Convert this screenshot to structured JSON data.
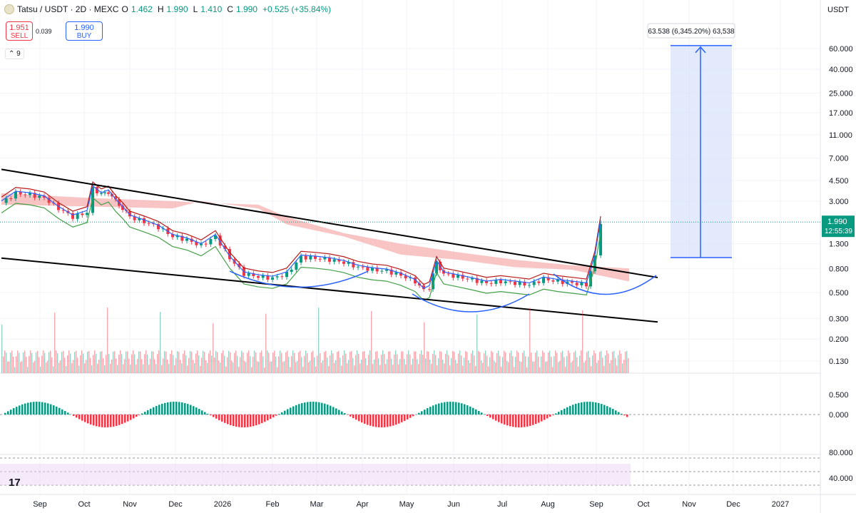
{
  "header": {
    "symbol": "Tatsu / USDT · 2D · MEXC",
    "o_label": "O",
    "o": "1.462",
    "h_label": "H",
    "h": "1.990",
    "l_label": "L",
    "l": "1.410",
    "c_label": "C",
    "c": "1.990",
    "change": "+0.525 (+35.84%)"
  },
  "trade": {
    "sell_price": "1.951",
    "sell_label": "SELL",
    "spread": "0.039",
    "buy_price": "1.990",
    "buy_label": "BUY"
  },
  "indicators_toggle": "⌃ 9",
  "currency": "USDT",
  "last_price_label": "1.990",
  "countdown": "12:55:39",
  "measure_label": "63.538 (6,345.20%) 63,538",
  "colors": {
    "up": "#089981",
    "down": "#f23645",
    "trendline": "#000000",
    "projection_fill": "#dbe5fb",
    "projection_line": "#2962ff",
    "cloud": "#f6b5b5",
    "kijun": "#b71c1c",
    "tenkan": "#2962ff",
    "chikou": "#43a047"
  },
  "chart_data": [
    {
      "type": "candlestick",
      "scale": "log",
      "x_ticks": [
        "Sep",
        "Oct",
        "Nov",
        "Dec",
        "2026",
        "Feb",
        "Mar",
        "Apr",
        "May",
        "Jun",
        "Jul",
        "Aug",
        "Sep",
        "Oct",
        "Nov",
        "Dec",
        "2027"
      ],
      "y_ticks": [
        "60.000",
        "40.000",
        "25.000",
        "17.000",
        "11.000",
        "7.000",
        "4.500",
        "3.000",
        "1.990",
        "1.300",
        "0.800",
        "0.500",
        "0.300",
        "0.200",
        "0.130"
      ],
      "close_path": [
        [
          0,
          2.9
        ],
        [
          1,
          3.5
        ],
        [
          2,
          3.4
        ],
        [
          3,
          3.2
        ],
        [
          4,
          2.6
        ],
        [
          5,
          2.2
        ],
        [
          6,
          2.4
        ],
        [
          6.4,
          3.9
        ],
        [
          7,
          3.4
        ],
        [
          7.5,
          3.6
        ],
        [
          8,
          3.0
        ],
        [
          8.5,
          2.6
        ],
        [
          9,
          2.2
        ],
        [
          10,
          2.0
        ],
        [
          11,
          1.8
        ],
        [
          12,
          1.5
        ],
        [
          13,
          1.4
        ],
        [
          14,
          1.25
        ],
        [
          15,
          1.5
        ],
        [
          16,
          0.98
        ],
        [
          17,
          0.72
        ],
        [
          18,
          0.68
        ],
        [
          19,
          0.66
        ],
        [
          20,
          0.72
        ],
        [
          21,
          1.0
        ],
        [
          22,
          0.98
        ],
        [
          23,
          0.95
        ],
        [
          24,
          0.9
        ],
        [
          25,
          0.82
        ],
        [
          26,
          0.78
        ],
        [
          27,
          0.76
        ],
        [
          28,
          0.7
        ],
        [
          29,
          0.62
        ],
        [
          29.6,
          0.52
        ],
        [
          30,
          0.55
        ],
        [
          30.5,
          0.9
        ],
        [
          31,
          0.72
        ],
        [
          32,
          0.68
        ],
        [
          33,
          0.64
        ],
        [
          34,
          0.6
        ],
        [
          35,
          0.62
        ],
        [
          36,
          0.6
        ],
        [
          37,
          0.58
        ],
        [
          38,
          0.65
        ],
        [
          39,
          0.62
        ],
        [
          40,
          0.6
        ],
        [
          41,
          0.58
        ],
        [
          41.6,
          1.0
        ],
        [
          42,
          1.99
        ]
      ],
      "volume_highlights": [
        0.3,
        0.95,
        0.55,
        0.5,
        0.45,
        0.6,
        0.35,
        0.3
      ],
      "cloud_upper": [
        [
          0,
          3.5
        ],
        [
          6,
          3.2
        ],
        [
          12,
          3.0
        ],
        [
          14,
          2.9
        ],
        [
          18,
          2.8
        ],
        [
          20,
          2.2
        ],
        [
          24,
          1.6
        ],
        [
          28,
          1.3
        ],
        [
          32,
          1.1
        ],
        [
          36,
          0.95
        ],
        [
          40,
          0.85
        ],
        [
          44,
          0.8
        ]
      ],
      "cloud_lower": [
        [
          0,
          2.8
        ],
        [
          6,
          2.7
        ],
        [
          12,
          2.6
        ],
        [
          14,
          3.0
        ],
        [
          18,
          2.6
        ],
        [
          20,
          1.9
        ],
        [
          24,
          1.5
        ],
        [
          28,
          1.05
        ],
        [
          32,
          0.95
        ],
        [
          36,
          0.82
        ],
        [
          40,
          0.78
        ],
        [
          44,
          0.62
        ]
      ],
      "support_line": [
        [
          0,
          0.98
        ],
        [
          46,
          0.28
        ]
      ],
      "resistance_line": [
        [
          0,
          5.6
        ],
        [
          46,
          0.67
        ]
      ],
      "projection": {
        "from": 0.99,
        "to": 63.538,
        "change_pct": 6345.2
      }
    },
    {
      "type": "histogram_oscillator",
      "y_ticks": [
        "0.500",
        "0.000"
      ]
    },
    {
      "type": "rsi_bands",
      "y_ticks": [
        "80.000",
        "40.000"
      ],
      "levels": [
        70,
        50,
        30
      ]
    }
  ]
}
